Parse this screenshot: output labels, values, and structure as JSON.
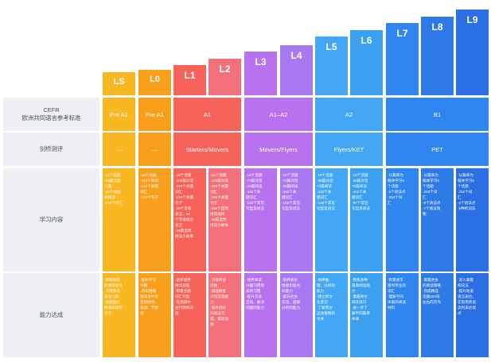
{
  "levels": [
    {
      "label": "LS"
    },
    {
      "label": "L0"
    },
    {
      "label": "L1"
    },
    {
      "label": "L2"
    },
    {
      "label": "L3"
    },
    {
      "label": "L4"
    },
    {
      "label": "L5"
    },
    {
      "label": "L6"
    },
    {
      "label": "L7"
    },
    {
      "label": "L8"
    },
    {
      "label": "L9"
    }
  ],
  "row_labels": {
    "cefr_line1": "CEFR",
    "cefr_line2": "欧洲共同语言参考标准",
    "cambridge": "剑桥测评",
    "content": "学习内容",
    "ability": "能力达成"
  },
  "cefr": [
    "Pre A1",
    "Pre A1",
    "A1",
    "A1–A2",
    "A2",
    "B1"
  ],
  "cambridge": [
    "—",
    "—",
    "Starters/Movers",
    "Movers/Flyers",
    "Flyers/KET",
    "PET"
  ],
  "content": [
    [
      "·16个话题",
      "·96篇主题",
      "儿歌",
      "·38个动画",
      "视频课",
      "·216个词汇"
    ],
    [
      "·16个话题",
      "·216个单词",
      "·144个关键",
      "词汇",
      "·144个句子"
    ],
    [
      "·16个话题",
      "·108篇对话",
      "·216个关键",
      "词汇",
      "·216个关键",
      "句子",
      "·36个音标",
      "发音，32",
      "个字母组合",
      "发音",
      "·36篇自然",
      "拼读小故事"
    ],
    [
      "·16个话题",
      "·108篇对话",
      "·216个关键",
      "词汇",
      "·216个关键",
      "句子",
      "·216个自然",
      "拼读规律",
      "·36篇自然",
      "拼读小故事"
    ],
    [
      "·16个话题",
      "·72篇对话",
      "·36篇阅读",
      "·432个关",
      "键词汇",
      "·102个常见",
      "句型及语法"
    ],
    [
      "·16个话题",
      "·72篇对话",
      "·36篇阅读",
      "·432个关",
      "键词汇",
      "·102个常见",
      "句型及语法"
    ],
    [
      "·16个话题",
      "·36篇对话",
      "72篇阅读",
      "·432个关",
      "键词汇",
      "·128个常见",
      "句型及语法"
    ],
    [
      "·16个话题",
      "·36篇对话",
      "72篇阅读",
      "·432个关",
      "键词汇",
      "·97个常见",
      "句型及语法"
    ],
    [
      "·以篇章为",
      "载体学习6",
      "个话题",
      "·6个语法点",
      "·253个词",
      "汇"
    ],
    [
      "·以篇章为",
      "载体学习6",
      "个话题",
      "·252个词",
      "汇",
      "·9个语法点",
      "·7个阅读策",
      "略"
    ],
    [
      "·以篇章为",
      "载体学习6",
      "个话题",
      "·252个词",
      "汇",
      "·2个语法点",
      "·6种构词法"
    ]
  ],
  "ability": [
    [
      "·掌握简单",
      "的课堂指令",
      "·习得英语",
      "发文儿歌",
      "·能结图片",
      "用简单词和",
      "句子"
    ],
    [
      "·提升学习",
      "兴趣",
      "·辨识相确",
      "语法语中发",
      "音的特点、",
      "语调、节奏",
      "感"
    ],
    [
      "·初步培养",
      "拼读技能",
      "·积累主题",
      "词汇句型",
      "·在场景中",
      "进行简单对",
      "话"
    ],
    [
      "·习得英语",
      "思维",
      "·加强情景",
      "对话交流能",
      "力",
      "·培养良好",
      "的阅读习",
      "惯，提高语",
      "感"
    ],
    [
      "·培养阅读",
      "兴趣习惯探",
      "索的习惯",
      "·提升交流",
      "互动，解决",
      "问题的能力"
    ],
    [
      "·培养表达",
      "情感和观点",
      "的能力",
      "·提升社会",
      "交流、逻辑",
      "分析的能力"
    ],
    [
      "·培养推",
      "理、分析的",
      "能力",
      "·建立跨文",
      "化意识",
      "·了解英文",
      "运语策略和",
      "文体"
    ],
    [
      "·稳练多种",
      "篇章阅读能",
      "力",
      "·掌握英文",
      "阅读技巧",
      "·进一步了",
      "解不同篇章",
      "体裁"
    ],
    [
      "·积累更丰",
      "富和专业的",
      "词汇",
      "·理解不同",
      "体裁的阅读",
      "材料"
    ],
    [
      "·掌握更多",
      "的阅读策略",
      "·完成精选",
      "话题200词",
      "左右的写作"
    ],
    [
      "·深入掌握",
      "构词法",
      "·提升地道",
      "语言表达，",
      "实现用英语",
      "流利表达观",
      "点"
    ]
  ],
  "colors": {
    "LS": "#f9b722",
    "L0": "#f99f1c",
    "L1": "#f7625a",
    "L2": "#f3717a",
    "L3": "#b872f0",
    "L4": "#a879f2",
    "L5": "#43a7f5",
    "L6": "#3ba0f0",
    "L7": "#2f86f0",
    "L8": "#2e7be8",
    "L9": "#2a6fe3",
    "label_bg": "#eef0f3",
    "label_text": "#4a4f57"
  }
}
